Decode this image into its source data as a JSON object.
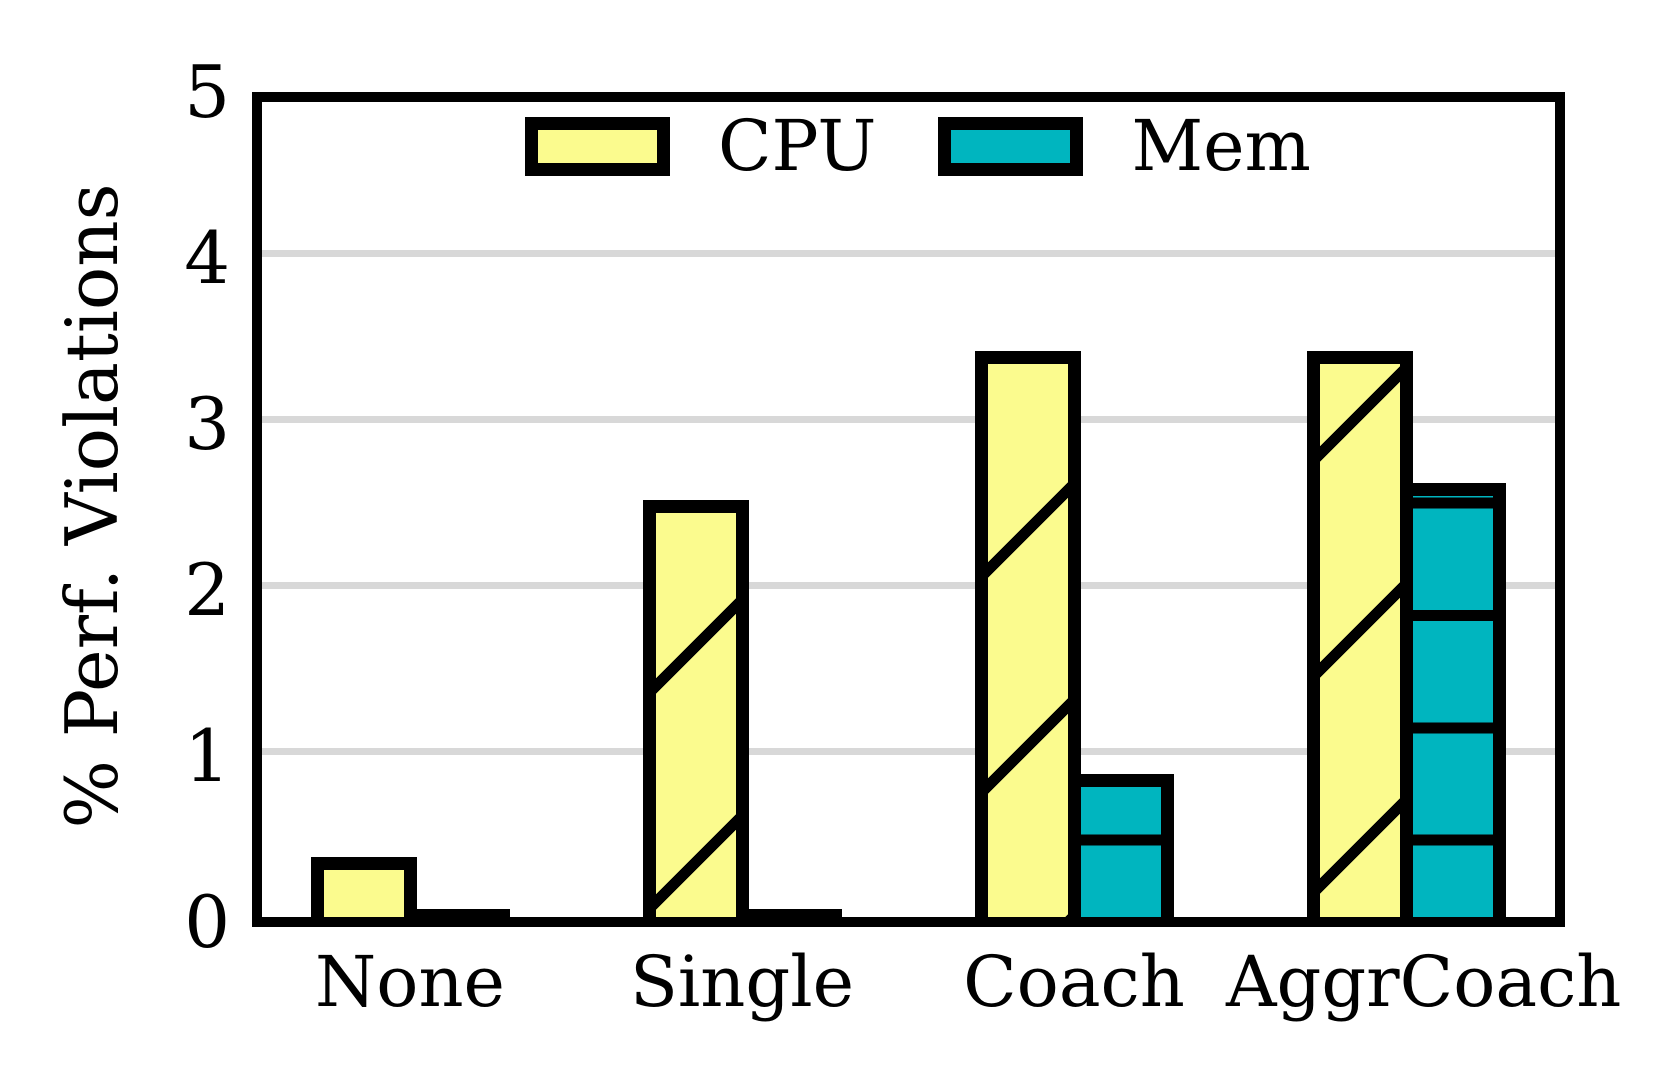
{
  "chart_data": {
    "type": "bar",
    "title": "",
    "categories": [
      "None",
      "Single",
      "Coach",
      "AggrCoach"
    ],
    "series": [
      {
        "name": "CPU",
        "color": "#FBFB8E",
        "hatch": "/",
        "values": [
          0.35,
          2.5,
          3.4,
          3.4
        ]
      },
      {
        "name": "Mem",
        "color": "#00B5BF",
        "hatch": "-",
        "values": [
          0.02,
          0.02,
          0.85,
          2.6
        ]
      }
    ],
    "xlabel": "",
    "ylabel": "% Perf. Violations",
    "ylim": [
      0,
      5
    ],
    "yticks": [
      0,
      1,
      2,
      3,
      4,
      5
    ],
    "grid": {
      "horizontal": true,
      "values": [
        1,
        2,
        3,
        4
      ],
      "color": "#D8D8D8"
    },
    "legend": {
      "position": "top-inside",
      "entries": [
        "CPU",
        "Mem"
      ]
    },
    "bar_edge_color": "#000000",
    "background_color": "#FFFFFF"
  }
}
